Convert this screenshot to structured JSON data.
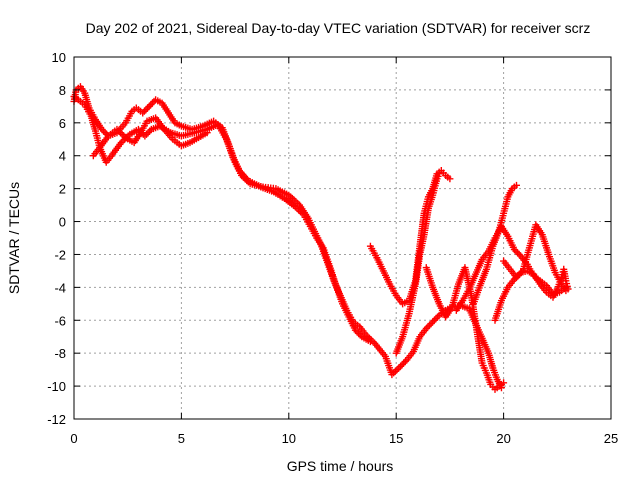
{
  "chart_data": {
    "type": "scatter",
    "title": "Day 202 of 2021, Sidereal Day-to-day VTEC variation (SDTVAR) for receiver scrz",
    "xlabel": "GPS time / hours",
    "ylabel": "SDTVAR / TECUs",
    "xlim": [
      0,
      25
    ],
    "ylim": [
      -12,
      10
    ],
    "xticks": [
      0,
      5,
      10,
      15,
      20,
      25
    ],
    "yticks": [
      -12,
      -10,
      -8,
      -6,
      -4,
      -2,
      0,
      2,
      4,
      6,
      8,
      10
    ],
    "xtick_labels": [
      "0",
      "5",
      "10",
      "15",
      "20",
      "25"
    ],
    "ytick_labels": [
      "-12",
      "-10",
      "-8",
      "-6",
      "-4",
      "-2",
      "0",
      "2",
      "4",
      "6",
      "8",
      "10"
    ],
    "grid": true,
    "marker": "+",
    "color": "#ff0000",
    "series": [
      {
        "name": "track-a",
        "points": [
          [
            0.0,
            7.3
          ],
          [
            0.1,
            8.0
          ],
          [
            0.3,
            8.2
          ],
          [
            0.5,
            7.8
          ],
          [
            0.7,
            6.9
          ],
          [
            1.0,
            6.2
          ],
          [
            1.3,
            5.6
          ],
          [
            1.6,
            5.2
          ],
          [
            2.0,
            5.4
          ],
          [
            2.4,
            6.0
          ],
          [
            2.7,
            6.7
          ],
          [
            2.9,
            6.9
          ],
          [
            3.2,
            6.6
          ],
          [
            3.5,
            7.0
          ],
          [
            3.8,
            7.4
          ],
          [
            4.1,
            7.2
          ],
          [
            4.4,
            6.6
          ],
          [
            4.7,
            6.0
          ],
          [
            5.0,
            5.8
          ],
          [
            5.5,
            5.6
          ],
          [
            6.0,
            5.8
          ],
          [
            6.5,
            6.1
          ],
          [
            6.9,
            5.7
          ],
          [
            7.2,
            4.7
          ],
          [
            7.5,
            3.6
          ],
          [
            7.8,
            2.8
          ],
          [
            8.2,
            2.3
          ],
          [
            8.8,
            2.1
          ],
          [
            9.4,
            2.0
          ],
          [
            10.0,
            1.6
          ],
          [
            10.5,
            1.0
          ],
          [
            10.9,
            0.2
          ],
          [
            11.2,
            -0.6
          ],
          [
            11.5,
            -1.4
          ],
          [
            11.8,
            -2.5
          ],
          [
            12.1,
            -3.6
          ],
          [
            12.4,
            -4.5
          ],
          [
            12.7,
            -5.4
          ],
          [
            13.0,
            -6.1
          ],
          [
            13.3,
            -6.4
          ],
          [
            13.6,
            -6.9
          ],
          [
            14.0,
            -7.4
          ],
          [
            14.5,
            -8.2
          ],
          [
            14.8,
            -9.3
          ],
          [
            15.2,
            -8.8
          ],
          [
            15.5,
            -8.4
          ],
          [
            15.8,
            -7.9
          ],
          [
            16.1,
            -7.0
          ],
          [
            16.4,
            -6.5
          ],
          [
            16.7,
            -6.1
          ],
          [
            17.0,
            -5.7
          ],
          [
            17.3,
            -5.4
          ],
          [
            17.6,
            -5.2
          ],
          [
            18.0,
            -5.1
          ],
          [
            18.4,
            -5.3
          ],
          [
            18.7,
            -6.2
          ],
          [
            19.0,
            -7.1
          ],
          [
            19.3,
            -8.0
          ],
          [
            19.5,
            -8.9
          ],
          [
            19.7,
            -9.6
          ],
          [
            19.9,
            -10.1
          ]
        ]
      },
      {
        "name": "track-b",
        "points": [
          [
            0.0,
            7.6
          ],
          [
            0.2,
            7.4
          ],
          [
            0.5,
            7.1
          ],
          [
            0.8,
            6.4
          ],
          [
            1.0,
            5.5
          ],
          [
            1.2,
            4.5
          ],
          [
            1.5,
            3.6
          ],
          [
            1.8,
            4.1
          ],
          [
            2.2,
            4.8
          ],
          [
            2.6,
            5.3
          ],
          [
            3.0,
            5.6
          ],
          [
            3.3,
            5.2
          ],
          [
            3.6,
            5.6
          ],
          [
            4.0,
            5.8
          ],
          [
            4.5,
            5.4
          ],
          [
            5.0,
            5.2
          ],
          [
            5.6,
            5.4
          ],
          [
            6.2,
            5.6
          ],
          [
            6.7,
            5.9
          ],
          [
            7.1,
            5.0
          ],
          [
            7.4,
            3.9
          ],
          [
            7.7,
            3.1
          ],
          [
            8.1,
            2.5
          ],
          [
            8.7,
            2.1
          ],
          [
            9.3,
            1.8
          ],
          [
            9.8,
            1.4
          ],
          [
            10.3,
            0.9
          ],
          [
            10.7,
            0.4
          ],
          [
            11.0,
            -0.3
          ],
          [
            11.3,
            -1.0
          ],
          [
            11.6,
            -1.6
          ],
          [
            11.9,
            -2.7
          ],
          [
            12.2,
            -3.9
          ],
          [
            12.5,
            -5.0
          ],
          [
            12.8,
            -5.8
          ],
          [
            13.1,
            -6.6
          ],
          [
            13.4,
            -7.0
          ],
          [
            13.8,
            -7.3
          ]
        ]
      },
      {
        "name": "track-c",
        "points": [
          [
            0.9,
            4.0
          ],
          [
            1.2,
            4.5
          ],
          [
            1.6,
            5.2
          ],
          [
            2.0,
            5.6
          ],
          [
            2.4,
            5.1
          ],
          [
            2.8,
            4.8
          ],
          [
            3.1,
            5.4
          ],
          [
            3.4,
            6.1
          ],
          [
            3.8,
            6.3
          ],
          [
            4.2,
            5.6
          ],
          [
            4.6,
            5.0
          ],
          [
            5.0,
            4.6
          ],
          [
            5.4,
            4.8
          ],
          [
            5.8,
            5.1
          ],
          [
            6.2,
            5.4
          ]
        ]
      },
      {
        "name": "track-d",
        "points": [
          [
            13.8,
            -1.5
          ],
          [
            14.1,
            -2.2
          ],
          [
            14.4,
            -3.0
          ],
          [
            14.7,
            -3.8
          ],
          [
            15.0,
            -4.5
          ],
          [
            15.3,
            -5.0
          ],
          [
            15.6,
            -4.8
          ],
          [
            15.9,
            -3.6
          ],
          [
            16.1,
            -1.5
          ],
          [
            16.3,
            0.5
          ],
          [
            16.5,
            1.5
          ],
          [
            16.7,
            2.0
          ],
          [
            16.9,
            2.9
          ],
          [
            17.1,
            3.1
          ],
          [
            17.3,
            2.8
          ],
          [
            17.5,
            2.6
          ]
        ]
      },
      {
        "name": "track-e",
        "points": [
          [
            15.0,
            -8.0
          ],
          [
            15.3,
            -7.0
          ],
          [
            15.6,
            -5.6
          ],
          [
            15.9,
            -3.8
          ],
          [
            16.1,
            -2.0
          ],
          [
            16.3,
            -0.8
          ],
          [
            16.5,
            0.8
          ],
          [
            16.7,
            1.6
          ],
          [
            16.9,
            2.6
          ],
          [
            17.0,
            2.9
          ]
        ]
      },
      {
        "name": "track-f",
        "points": [
          [
            16.4,
            -2.8
          ],
          [
            16.7,
            -4.0
          ],
          [
            17.0,
            -5.0
          ],
          [
            17.3,
            -5.8
          ],
          [
            17.6,
            -5.2
          ],
          [
            17.9,
            -3.8
          ],
          [
            18.2,
            -2.8
          ],
          [
            18.5,
            -4.5
          ],
          [
            18.8,
            -7.0
          ],
          [
            19.0,
            -8.6
          ],
          [
            19.2,
            -9.2
          ],
          [
            19.4,
            -9.9
          ],
          [
            19.6,
            -10.2
          ],
          [
            19.8,
            -10.0
          ],
          [
            20.0,
            -9.8
          ]
        ]
      },
      {
        "name": "track-g",
        "points": [
          [
            18.6,
            -5.0
          ],
          [
            18.9,
            -3.9
          ],
          [
            19.2,
            -2.9
          ],
          [
            19.5,
            -1.5
          ],
          [
            19.8,
            -0.5
          ],
          [
            20.0,
            0.5
          ],
          [
            20.2,
            1.5
          ],
          [
            20.4,
            2.0
          ],
          [
            20.6,
            2.2
          ]
        ]
      },
      {
        "name": "track-h",
        "points": [
          [
            17.8,
            -5.4
          ],
          [
            18.1,
            -4.8
          ],
          [
            18.4,
            -4.1
          ],
          [
            18.7,
            -3.2
          ],
          [
            19.0,
            -2.3
          ],
          [
            19.3,
            -1.8
          ],
          [
            19.6,
            -1.0
          ],
          [
            19.9,
            -0.3
          ],
          [
            20.2,
            -0.9
          ],
          [
            20.5,
            -1.7
          ],
          [
            20.8,
            -2.1
          ],
          [
            21.1,
            -2.6
          ],
          [
            21.4,
            -3.3
          ],
          [
            21.7,
            -3.6
          ],
          [
            22.0,
            -3.9
          ],
          [
            22.3,
            -4.4
          ],
          [
            22.6,
            -4.3
          ],
          [
            22.9,
            -4.0
          ]
        ]
      },
      {
        "name": "track-i",
        "points": [
          [
            19.6,
            -6.0
          ],
          [
            19.9,
            -4.8
          ],
          [
            20.2,
            -4.0
          ],
          [
            20.5,
            -3.5
          ],
          [
            20.8,
            -3.1
          ],
          [
            21.1,
            -3.0
          ],
          [
            21.4,
            -3.2
          ],
          [
            21.7,
            -3.8
          ],
          [
            22.0,
            -4.3
          ],
          [
            22.3,
            -4.6
          ],
          [
            22.5,
            -4.1
          ],
          [
            22.7,
            -3.4
          ],
          [
            22.8,
            -2.9
          ],
          [
            22.9,
            -3.6
          ],
          [
            23.0,
            -4.1
          ]
        ]
      },
      {
        "name": "track-j",
        "points": [
          [
            20.0,
            -2.4
          ],
          [
            20.3,
            -2.9
          ],
          [
            20.6,
            -3.4
          ],
          [
            20.9,
            -3.0
          ],
          [
            21.2,
            -1.6
          ],
          [
            21.5,
            -0.2
          ],
          [
            21.8,
            -0.8
          ],
          [
            22.1,
            -2.0
          ],
          [
            22.4,
            -3.1
          ],
          [
            22.7,
            -3.8
          ],
          [
            22.9,
            -4.2
          ]
        ]
      }
    ]
  }
}
